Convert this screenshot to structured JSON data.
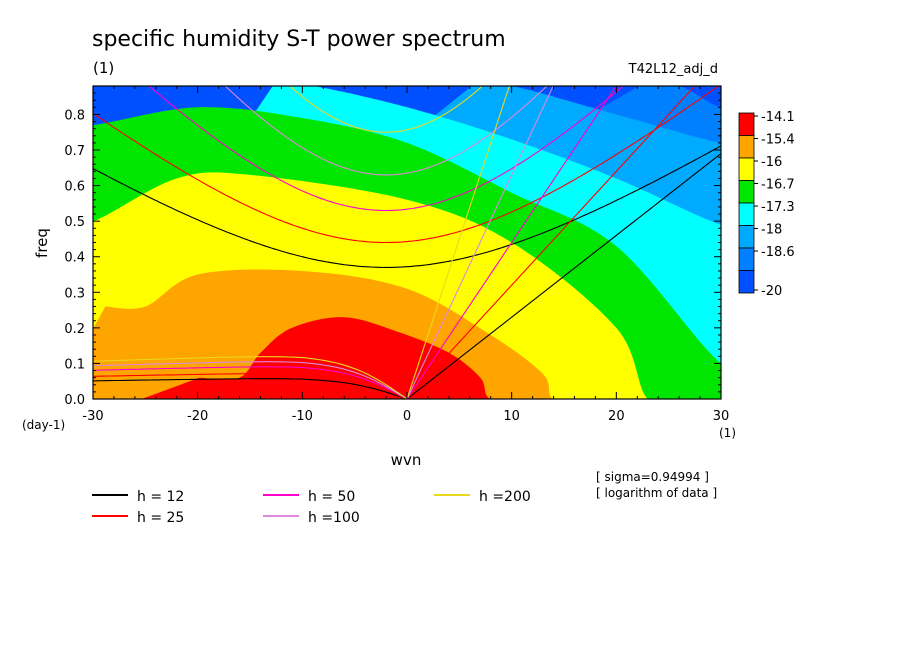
{
  "chart_data": {
    "type": "heatmap",
    "title": "specific humidity S-T power spectrum",
    "subtitle": "(1)",
    "run_label": "T42L12_adj_d",
    "xlabel": "wvn",
    "ylabel": "freq",
    "x_unit": "(1)",
    "y_unit": "(day-1)",
    "xlim": [
      -30,
      30
    ],
    "ylim": [
      0,
      0.88
    ],
    "x_ticks": [
      "-30",
      "-20",
      "-10",
      "0",
      "10",
      "20",
      "30"
    ],
    "y_ticks": [
      "0.0",
      "0.1",
      "0.2",
      "0.3",
      "0.4",
      "0.5",
      "0.6",
      "0.7",
      "0.8"
    ],
    "colorbar": {
      "labels": [
        "-14.1",
        "-15.4",
        "-16",
        "-16.7",
        "-17.3",
        "-18",
        "-18.6",
        "-20"
      ],
      "colors": [
        "#ff0000",
        "#ffa500",
        "#ffff00",
        "#00e600",
        "#00ffff",
        "#00aaff",
        "#0080ff",
        "#0050ff"
      ]
    },
    "field_levels": [
      {
        "level": "-14.1",
        "color": "#ff0000",
        "boundary": [
          [
            -16,
            0.06
          ],
          [
            -14,
            0.13
          ],
          [
            -11,
            0.2
          ],
          [
            -6,
            0.23
          ],
          [
            -1,
            0.19
          ],
          [
            4,
            0.13
          ],
          [
            7,
            0.06
          ],
          [
            8,
            0
          ]
        ]
      },
      {
        "level": "-15.4",
        "color": "#ffa500",
        "boundary": [
          [
            -25,
            0.26
          ],
          [
            -20,
            0.35
          ],
          [
            -10,
            0.36
          ],
          [
            0,
            0.31
          ],
          [
            8,
            0.18
          ],
          [
            13,
            0.07
          ],
          [
            14,
            0
          ]
        ]
      },
      {
        "level": "-16",
        "color": "#ffff00",
        "boundary": [
          [
            -30,
            0.5
          ],
          [
            -22,
            0.62
          ],
          [
            -15,
            0.63
          ],
          [
            0,
            0.56
          ],
          [
            10,
            0.44
          ],
          [
            20,
            0.2
          ],
          [
            23,
            0
          ]
        ]
      },
      {
        "level": "-16.7",
        "color": "#00e600",
        "boundary": [
          [
            -30,
            0.77
          ],
          [
            -20,
            0.82
          ],
          [
            -10,
            0.79
          ],
          [
            0,
            0.72
          ],
          [
            10,
            0.58
          ],
          [
            20,
            0.43
          ],
          [
            30,
            0.1
          ]
        ]
      },
      {
        "level": "-17.3",
        "color": "#00ffff",
        "boundary": [
          [
            -9,
            0.88
          ],
          [
            0,
            0.82
          ],
          [
            10,
            0.73
          ],
          [
            20,
            0.62
          ],
          [
            30,
            0.49
          ]
        ]
      },
      {
        "level": "-18",
        "color": "#00aaff",
        "boundary": [
          [
            10,
            0.88
          ],
          [
            20,
            0.8
          ],
          [
            30,
            0.72
          ]
        ]
      },
      {
        "level": "-18.6",
        "color": "#0080ff",
        "boundary": [
          [
            26,
            0.88
          ],
          [
            30,
            0.82
          ]
        ]
      }
    ],
    "dispersion_curves": [
      {
        "name": "h = 12",
        "color": "#000000",
        "gravity_min": 0.37,
        "gravity_w": 0.019,
        "kelvin_slope": 0.023,
        "rossby": 0.06
      },
      {
        "name": "h = 25",
        "color": "#ff0000",
        "gravity_min": 0.44,
        "gravity_w": 0.024,
        "kelvin_slope": 0.032,
        "rossby": 0.075
      },
      {
        "name": "h = 50",
        "color": "#ff00cc",
        "gravity_min": 0.53,
        "gravity_w": 0.031,
        "kelvin_slope": 0.044,
        "rossby": 0.095
      },
      {
        "name": "h =100",
        "color": "#dd88dd",
        "gravity_min": 0.63,
        "gravity_w": 0.04,
        "kelvin_slope": 0.063,
        "rossby": 0.11
      },
      {
        "name": "h =200",
        "color": "#e8d820",
        "gravity_min": 0.75,
        "gravity_w": 0.05,
        "kelvin_slope": 0.09,
        "rossby": 0.125
      }
    ],
    "annotations": [
      "[ sigma=0.94994 ]",
      "[ logarithm of data ]"
    ],
    "legend_position": "bottom-left",
    "grid": false
  }
}
